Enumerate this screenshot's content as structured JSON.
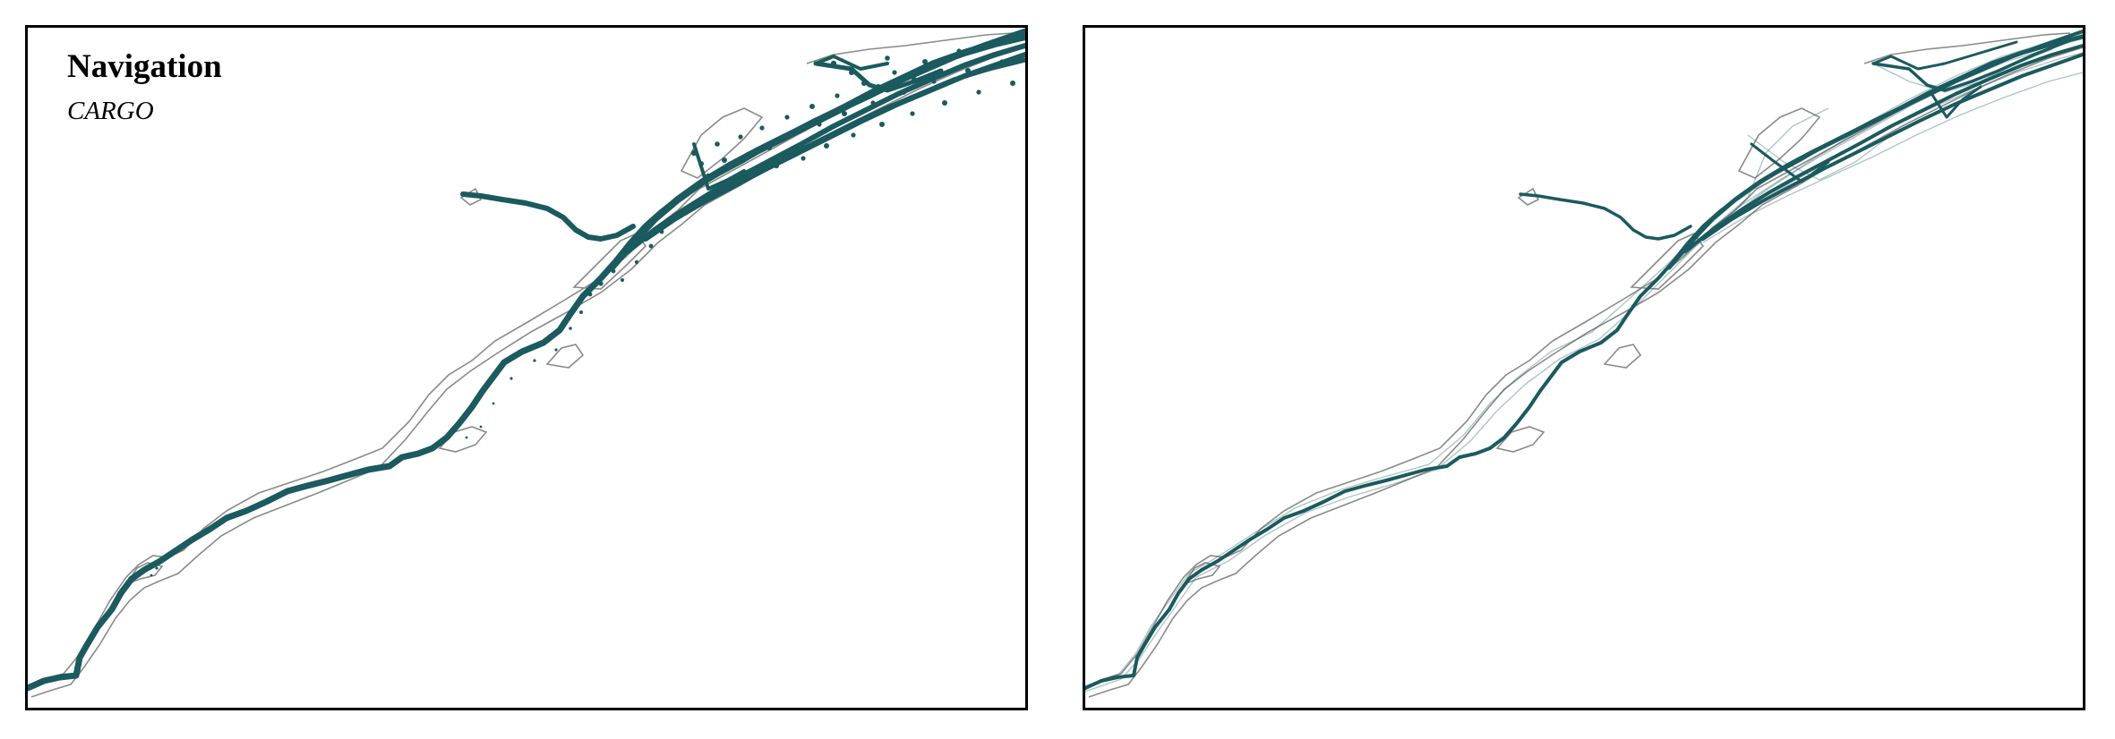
{
  "figure": {
    "title": "Navigation",
    "subtitle": "CARGO",
    "colors": {
      "track": "#1b5a5e",
      "shoreline": "#8a8a8a",
      "frame": "#000000",
      "background": "#ffffff"
    }
  },
  "panels": [
    {
      "id": "left",
      "style": "points"
    },
    {
      "id": "right",
      "style": "lines"
    }
  ]
}
